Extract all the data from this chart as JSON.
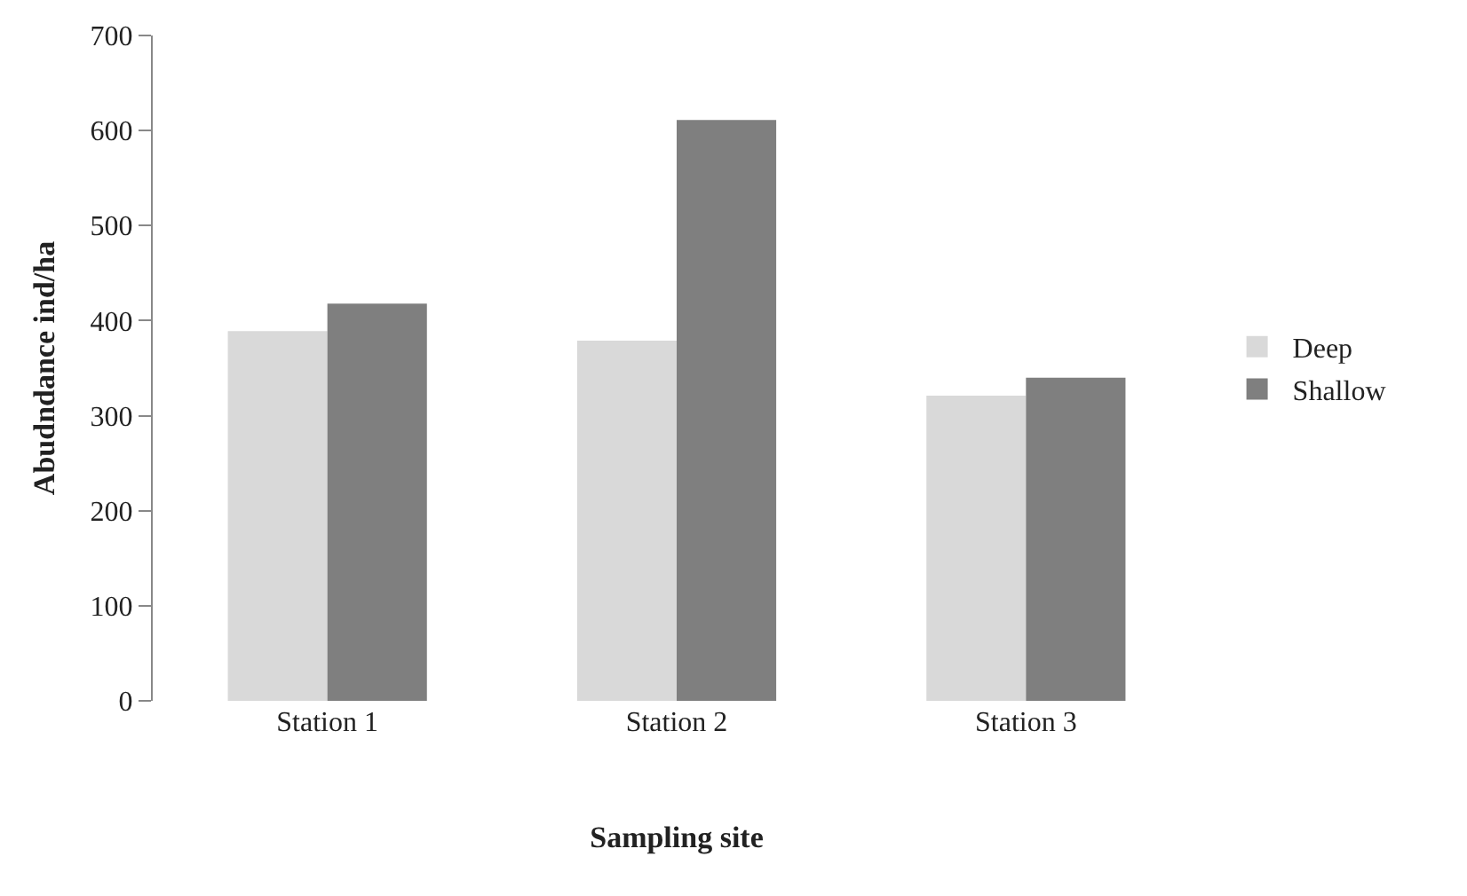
{
  "chart_data": {
    "type": "bar",
    "xlabel": "Sampling site",
    "ylabel": "Abudndance ind/ha",
    "categories": [
      "Station 1",
      "Station 2",
      "Station 3"
    ],
    "series": [
      {
        "name": "Deep",
        "color": "#d9d9d9",
        "values": [
          389,
          379,
          321
        ]
      },
      {
        "name": "Shallow",
        "color": "#7f7f7f",
        "values": [
          418,
          611,
          340
        ]
      }
    ],
    "ylim": [
      0,
      700
    ],
    "yticks": [
      0,
      100,
      200,
      300,
      400,
      500,
      600,
      700
    ],
    "legend": "right"
  }
}
